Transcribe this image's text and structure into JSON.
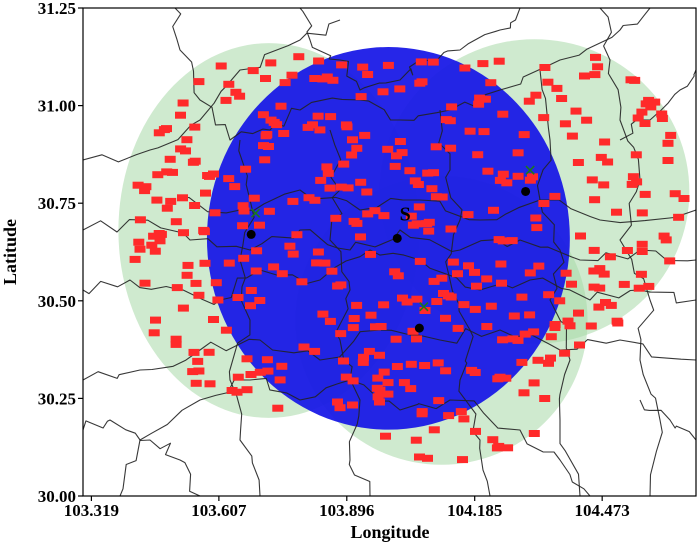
{
  "chart_data": {
    "type": "scatter",
    "xlabel": "Longitude",
    "ylabel": "Latitude",
    "xlim": [
      103.3,
      104.685
    ],
    "ylim": [
      30.0,
      31.25
    ],
    "x_ticks": [
      "103.319",
      "103.607",
      "103.896",
      "104.185",
      "104.473"
    ],
    "y_ticks": [
      "30.00",
      "30.25",
      "30.50",
      "30.75",
      "31.00",
      "31.25"
    ],
    "colors": {
      "user_marker": "#ff2a2a",
      "main_coverage": "#1515e6",
      "secondary_coverage": "#a8d8a8",
      "boundary_line": "#222222",
      "uav_marker": "#1a7a1a"
    },
    "source_label": "S",
    "source": {
      "x": 104.01,
      "y": 30.66
    },
    "relays": [
      {
        "x": 103.68,
        "y": 30.67
      },
      {
        "x": 104.3,
        "y": 30.78
      },
      {
        "x": 104.06,
        "y": 30.43
      }
    ],
    "uavs": [
      {
        "x": 103.69,
        "y": 30.71
      },
      {
        "x": 104.31,
        "y": 30.82
      },
      {
        "x": 104.07,
        "y": 30.47
      }
    ],
    "coverage_main": {
      "cx": 103.99,
      "cy": 30.66,
      "rx": 0.41,
      "ry": 0.49
    },
    "coverage_secondary": [
      {
        "cx": 103.72,
        "cy": 30.68,
        "rx": 0.34,
        "ry": 0.48
      },
      {
        "cx": 104.32,
        "cy": 30.78,
        "rx": 0.35,
        "ry": 0.39
      },
      {
        "cx": 104.11,
        "cy": 30.45,
        "rx": 0.33,
        "ry": 0.37
      }
    ],
    "user_count": 420
  }
}
